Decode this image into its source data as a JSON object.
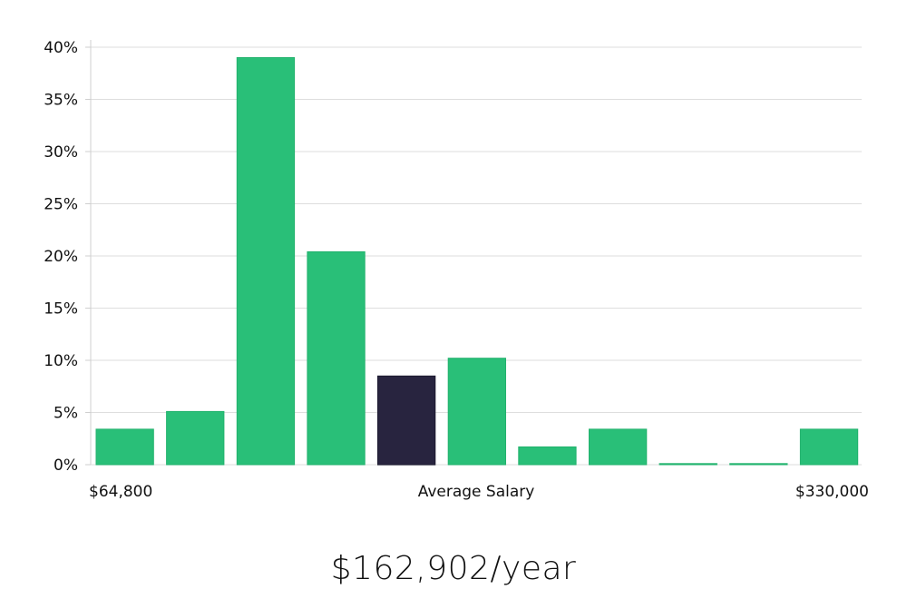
{
  "chart_data": {
    "type": "bar",
    "title": "",
    "xlabel": "Average Salary",
    "ylabel": "",
    "x_left_label": "$64,800",
    "x_right_label": "$330,000",
    "ylim": [
      0,
      40
    ],
    "yticks": [
      0,
      5,
      10,
      15,
      20,
      25,
      30,
      35,
      40
    ],
    "ytick_labels": [
      "0%",
      "5%",
      "10%",
      "15%",
      "20%",
      "25%",
      "30%",
      "35%",
      "40%"
    ],
    "values": [
      3.4,
      5.1,
      39.0,
      20.4,
      8.5,
      10.2,
      1.7,
      3.4,
      0,
      0,
      3.4
    ],
    "highlight_index": 4,
    "grid": true
  },
  "colors": {
    "bar": "#29bf78",
    "bar_edge": "#22b26d",
    "highlight": "#28243f",
    "grid": "#dedede",
    "axis": "#cfcfcf"
  },
  "salary": {
    "text": "$162,902/year"
  }
}
